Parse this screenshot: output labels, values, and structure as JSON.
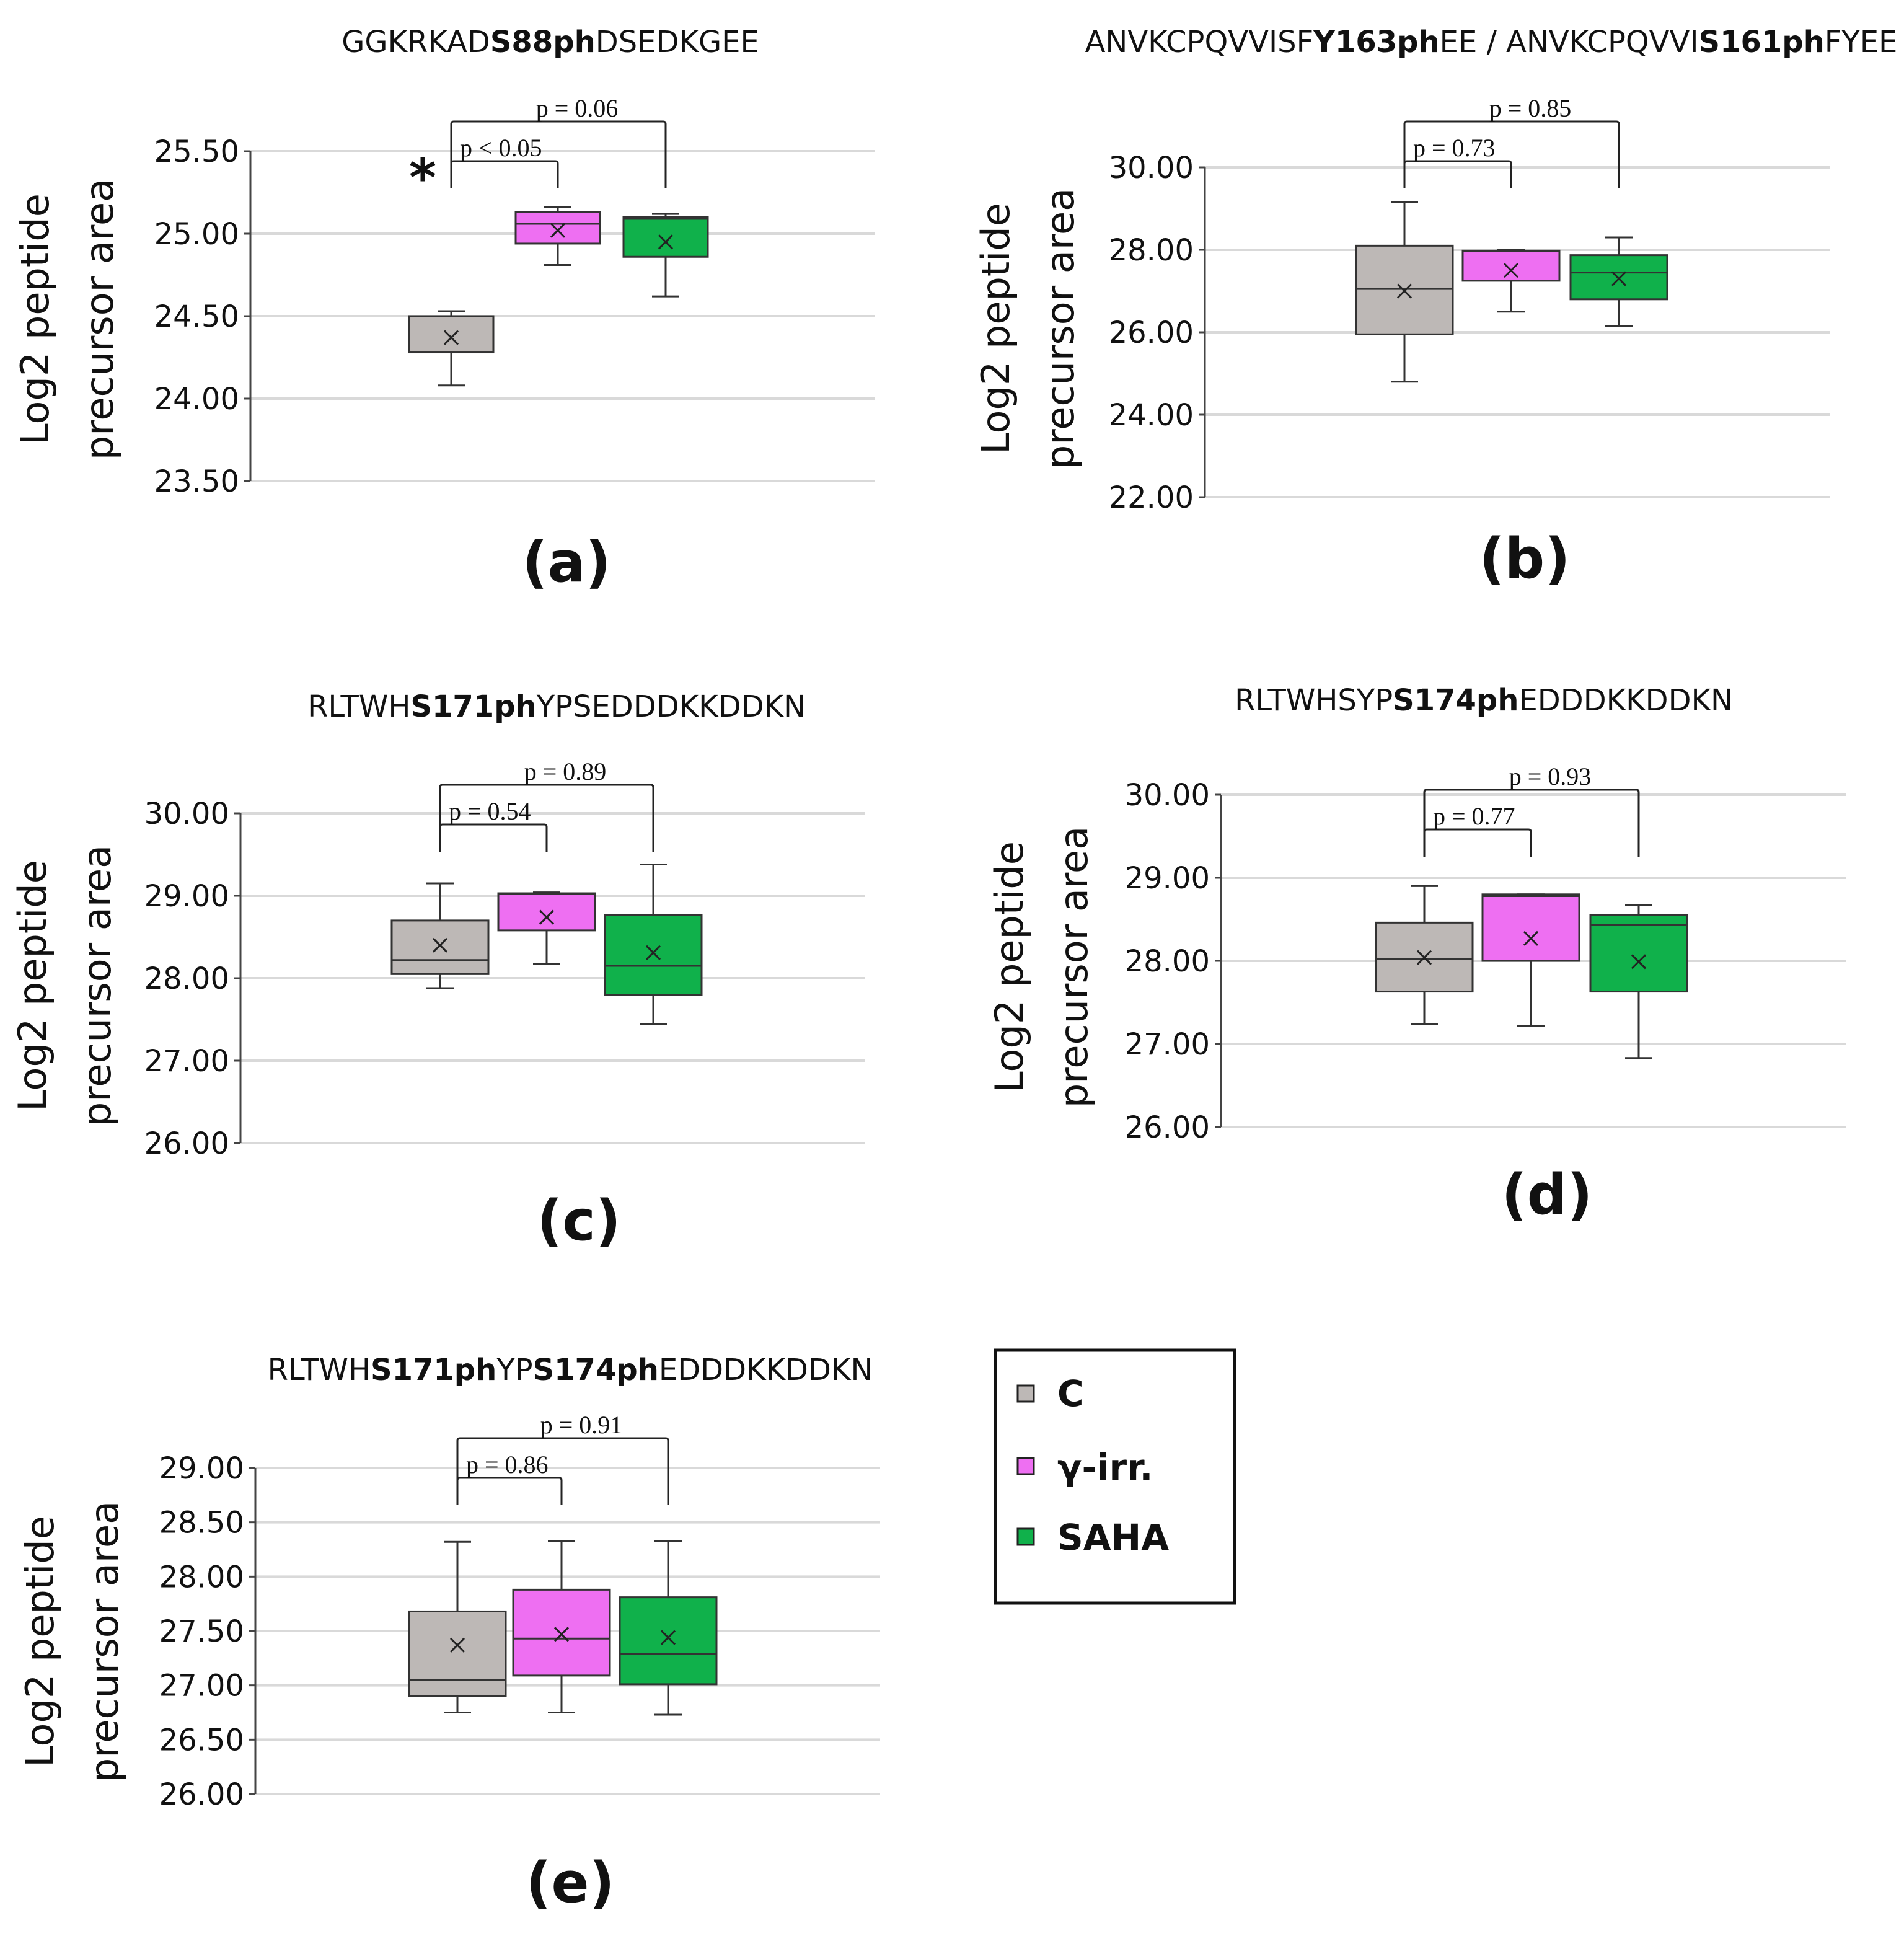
{
  "chart_data": [
    {
      "id": "a",
      "type": "box",
      "panel_label": "(a)",
      "title_parts": [
        {
          "text": "GGKRKAD",
          "bold": false
        },
        {
          "text": "S88ph",
          "bold": true
        },
        {
          "text": "DSEDKGEE",
          "bold": false
        }
      ],
      "ylabel_lines": [
        "Log2 peptide",
        "precursor area"
      ],
      "ylim": [
        23.5,
        25.5
      ],
      "yticks": [
        "23.50",
        "24.00",
        "24.50",
        "25.00",
        "25.50"
      ],
      "grid": true,
      "categories": [
        "C",
        "γ-irr.",
        "SAHA"
      ],
      "boxes": [
        {
          "group": "C",
          "min": 24.08,
          "q1": 24.28,
          "median": 24.5,
          "q3": 24.5,
          "max": 24.53,
          "mean": 24.37
        },
        {
          "group": "γ-irr.",
          "min": 24.81,
          "q1": 24.94,
          "median": 25.06,
          "q3": 25.13,
          "max": 25.16,
          "mean": 25.02
        },
        {
          "group": "SAHA",
          "min": 24.62,
          "q1": 24.86,
          "median": 25.09,
          "q3": 25.1,
          "max": 25.12,
          "mean": 24.95
        }
      ],
      "comparisons": [
        {
          "from": "C",
          "to": "γ-irr.",
          "label": "p  < 0.05",
          "level": 1
        },
        {
          "from": "C",
          "to": "SAHA",
          "label": "p = 0.06",
          "level": 2
        }
      ],
      "significance_mark": "*"
    },
    {
      "id": "b",
      "type": "box",
      "panel_label": "(b)",
      "title_parts": [
        {
          "text": "ANVKCPQVVISF",
          "bold": false
        },
        {
          "text": "Y163ph",
          "bold": true
        },
        {
          "text": "EE / ANVKCPQVVI",
          "bold": false
        },
        {
          "text": "S161ph",
          "bold": true
        },
        {
          "text": "FYEE",
          "bold": false
        }
      ],
      "ylabel_lines": [
        "Log2 peptide",
        "precursor area"
      ],
      "ylim": [
        22.0,
        30.0
      ],
      "yticks": [
        "22.00",
        "24.00",
        "26.00",
        "28.00",
        "30.00"
      ],
      "grid": true,
      "categories": [
        "C",
        "γ-irr.",
        "SAHA"
      ],
      "boxes": [
        {
          "group": "C",
          "min": 24.8,
          "q1": 25.95,
          "median": 27.05,
          "q3": 28.1,
          "max": 29.15,
          "mean": 27.0
        },
        {
          "group": "γ-irr.",
          "min": 26.5,
          "q1": 27.25,
          "median": 27.97,
          "q3": 27.98,
          "max": 28.0,
          "mean": 27.5
        },
        {
          "group": "SAHA",
          "min": 26.15,
          "q1": 26.8,
          "median": 27.45,
          "q3": 27.87,
          "max": 28.3,
          "mean": 27.3
        }
      ],
      "comparisons": [
        {
          "from": "C",
          "to": "γ-irr.",
          "label": "p = 0.73",
          "level": 1
        },
        {
          "from": "C",
          "to": "SAHA",
          "label": "p = 0.85",
          "level": 2
        }
      ]
    },
    {
      "id": "c",
      "type": "box",
      "panel_label": "(c)",
      "title_parts": [
        {
          "text": "RLTWH",
          "bold": false
        },
        {
          "text": "S171ph",
          "bold": true
        },
        {
          "text": "YPSEDDDKKDDKN",
          "bold": false
        }
      ],
      "ylabel_lines": [
        "Log2 peptide",
        "precursor area"
      ],
      "ylim": [
        26.0,
        30.0
      ],
      "yticks": [
        "26.00",
        "27.00",
        "28.00",
        "29.00",
        "30.00"
      ],
      "grid": true,
      "categories": [
        "C",
        "γ-irr.",
        "SAHA"
      ],
      "boxes": [
        {
          "group": "C",
          "min": 27.88,
          "q1": 28.05,
          "median": 28.22,
          "q3": 28.7,
          "max": 29.15,
          "mean": 28.4
        },
        {
          "group": "γ-irr.",
          "min": 28.17,
          "q1": 28.58,
          "median": 29.02,
          "q3": 29.03,
          "max": 29.04,
          "mean": 28.74
        },
        {
          "group": "SAHA",
          "min": 27.44,
          "q1": 27.8,
          "median": 28.15,
          "q3": 28.77,
          "max": 29.38,
          "mean": 28.31
        }
      ],
      "comparisons": [
        {
          "from": "C",
          "to": "γ-irr.",
          "label": "p = 0.54",
          "level": 1
        },
        {
          "from": "C",
          "to": "SAHA",
          "label": "p = 0.89",
          "level": 2
        }
      ]
    },
    {
      "id": "d",
      "type": "box",
      "panel_label": "(d)",
      "title_parts": [
        {
          "text": "RLTWHSYP",
          "bold": false
        },
        {
          "text": "S174ph",
          "bold": true
        },
        {
          "text": "EDDDKKDDKN",
          "bold": false
        }
      ],
      "ylabel_lines": [
        "Log2 peptide",
        "precursor area"
      ],
      "ylim": [
        26.0,
        30.0
      ],
      "yticks": [
        "26.00",
        "27.00",
        "28.00",
        "29.00",
        "30.00"
      ],
      "grid": true,
      "categories": [
        "C",
        "γ-irr.",
        "SAHA"
      ],
      "boxes": [
        {
          "group": "C",
          "min": 27.24,
          "q1": 27.63,
          "median": 28.02,
          "q3": 28.46,
          "max": 28.9,
          "mean": 28.04
        },
        {
          "group": "γ-irr.",
          "min": 27.22,
          "q1": 28.0,
          "median": 28.78,
          "q3": 28.8,
          "max": 28.8,
          "mean": 28.27
        },
        {
          "group": "SAHA",
          "min": 26.83,
          "q1": 27.63,
          "median": 28.43,
          "q3": 28.55,
          "max": 28.67,
          "mean": 27.99
        }
      ],
      "comparisons": [
        {
          "from": "C",
          "to": "γ-irr.",
          "label": "p = 0.77",
          "level": 1
        },
        {
          "from": "C",
          "to": "SAHA",
          "label": "p = 0.93",
          "level": 2
        }
      ]
    },
    {
      "id": "e",
      "type": "box",
      "panel_label": "(e)",
      "title_parts": [
        {
          "text": "RLTWH",
          "bold": false
        },
        {
          "text": "S171ph",
          "bold": true
        },
        {
          "text": "YP",
          "bold": false
        },
        {
          "text": "S174ph",
          "bold": true
        },
        {
          "text": "EDDDKKDDKN",
          "bold": false
        }
      ],
      "ylabel_lines": [
        "Log2 peptide",
        "precursor area"
      ],
      "ylim": [
        26.0,
        29.0
      ],
      "yticks": [
        "26.00",
        "26.50",
        "27.00",
        "27.50",
        "28.00",
        "28.50",
        "29.00"
      ],
      "grid": true,
      "categories": [
        "C",
        "γ-irr.",
        "SAHA"
      ],
      "boxes": [
        {
          "group": "C",
          "min": 26.75,
          "q1": 26.9,
          "median": 27.05,
          "q3": 27.68,
          "max": 28.32,
          "mean": 27.37
        },
        {
          "group": "γ-irr.",
          "min": 26.75,
          "q1": 27.09,
          "median": 27.43,
          "q3": 27.88,
          "max": 28.33,
          "mean": 27.47
        },
        {
          "group": "SAHA",
          "min": 26.73,
          "q1": 27.01,
          "median": 27.29,
          "q3": 27.81,
          "max": 28.33,
          "mean": 27.44
        }
      ],
      "comparisons": [
        {
          "from": "C",
          "to": "γ-irr.",
          "label": "p = 0.86",
          "level": 1
        },
        {
          "from": "C",
          "to": "SAHA",
          "label": "p = 0.91",
          "level": 2
        }
      ]
    }
  ],
  "legend": {
    "items": [
      {
        "label": "C",
        "color": "#bdb8b6"
      },
      {
        "label": "γ-irr.",
        "color": "#ee6ff2"
      },
      {
        "label": "SAHA",
        "color": "#10b14b"
      }
    ]
  },
  "colors": {
    "C": "#bdb8b6",
    "γ-irr.": "#ee6ff2",
    "SAHA": "#10b14b",
    "grid": "#d9d9d9",
    "text": "#111111"
  }
}
